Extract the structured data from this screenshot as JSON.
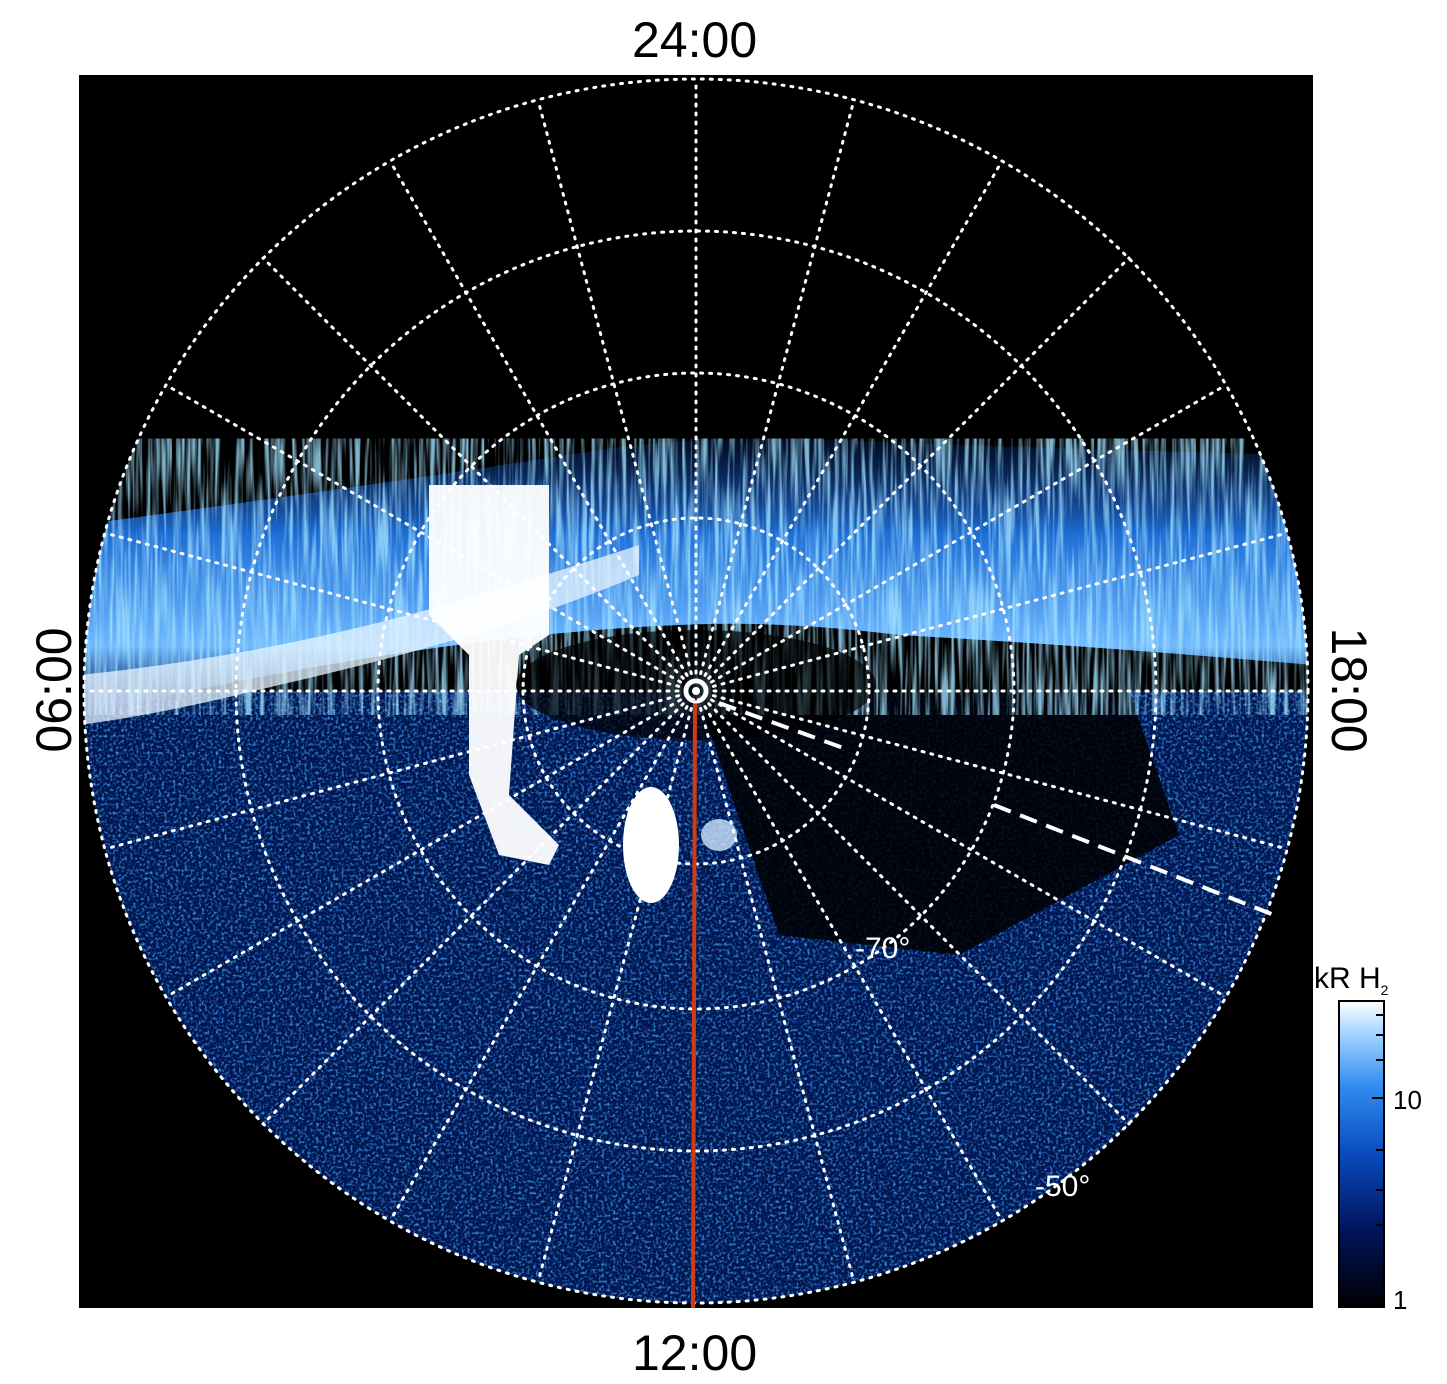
{
  "axis_labels": {
    "top": "24:00",
    "bottom": "12:00",
    "left": "06:00",
    "right": "18:00"
  },
  "latitude_labels": [
    {
      "text": "-70°"
    },
    {
      "text": "-50°"
    }
  ],
  "colorbar": {
    "title": "kR H",
    "title_sub": "2",
    "tick_labels": [
      "10",
      "1"
    ]
  },
  "colors": {
    "background": "#000000",
    "grid": "#ffffff",
    "meridian_line": "#d23a12",
    "aurora_bright": "#ffffff",
    "aurora_mid": "#3b8ee6",
    "aurora_dark": "#001a5e"
  }
}
